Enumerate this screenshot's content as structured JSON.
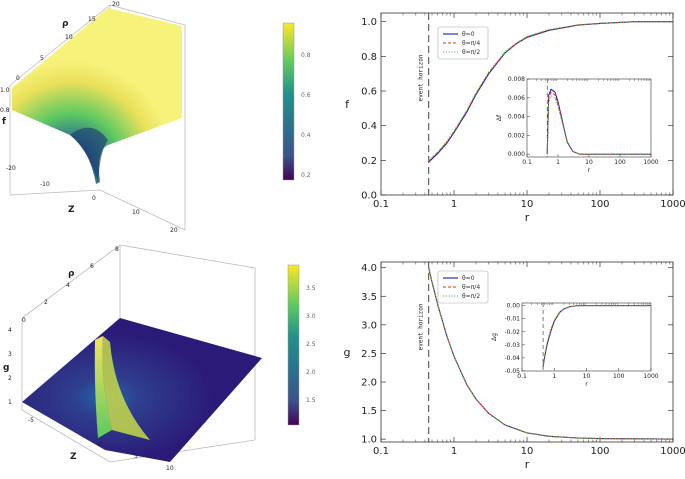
{
  "colorbar_top": {
    "ticks": [
      "0.2",
      "0.4",
      "0.6",
      "0.8"
    ]
  },
  "colorbar_bottom": {
    "ticks": [
      "1.5",
      "2.0",
      "2.5",
      "3.0",
      "3.5"
    ]
  },
  "surface_top": {
    "axis_rho": {
      "label": "ρ",
      "ticks": [
        "20",
        "15",
        "10",
        "5",
        "0"
      ]
    },
    "axis_f": {
      "label": "f",
      "ticks": [
        "1.0",
        "0.8"
      ]
    },
    "axis_z": {
      "label": "Z",
      "ticks": [
        "-20",
        "-10",
        "0",
        "10",
        "20"
      ]
    }
  },
  "surface_bottom": {
    "axis_rho": {
      "label": "ρ",
      "ticks": [
        "8",
        "6",
        "4",
        "2",
        "0"
      ]
    },
    "axis_g": {
      "label": "g",
      "ticks": [
        "4",
        "3",
        "2",
        "1"
      ]
    },
    "axis_z": {
      "label": "Z",
      "ticks": [
        "-5",
        "0",
        "5",
        "10"
      ]
    }
  },
  "chart_data": [
    {
      "type": "line",
      "xlabel": "r",
      "ylabel": "f",
      "xscale": "log",
      "xlim": [
        0.1,
        1000
      ],
      "ylim": [
        0,
        1.05
      ],
      "xticks": [
        "0.1",
        "1",
        "10",
        "100",
        "1000"
      ],
      "yticks": [
        "0.0",
        "0.2",
        "0.4",
        "0.6",
        "0.8",
        "1.0"
      ],
      "horizon_r": 0.45,
      "annotation": "event horizon",
      "x": [
        0.45,
        0.6,
        0.8,
        1,
        1.5,
        2,
        3,
        5,
        7,
        10,
        20,
        50,
        100,
        300,
        1000
      ],
      "series": [
        {
          "name": "θ=0",
          "color": "#1a1aa6",
          "style": "solid",
          "values": [
            0.19,
            0.24,
            0.3,
            0.36,
            0.48,
            0.58,
            0.7,
            0.82,
            0.87,
            0.91,
            0.95,
            0.98,
            0.99,
            1.0,
            1.0
          ]
        },
        {
          "name": "θ=π/4",
          "color": "#e0302a",
          "style": "dashed",
          "values": [
            0.195,
            0.245,
            0.305,
            0.365,
            0.485,
            0.585,
            0.705,
            0.822,
            0.872,
            0.912,
            0.952,
            0.98,
            0.99,
            1.0,
            1.0
          ]
        },
        {
          "name": "θ=π/2",
          "color": "#3ec13e",
          "style": "dotted",
          "values": [
            0.2,
            0.25,
            0.31,
            0.37,
            0.49,
            0.59,
            0.71,
            0.825,
            0.875,
            0.915,
            0.955,
            0.982,
            0.991,
            1.0,
            1.0
          ]
        }
      ],
      "inset": {
        "xlabel": "r",
        "ylabel": "Δf",
        "xlim": [
          0.1,
          1000
        ],
        "ylim": [
          -0.0003,
          0.008
        ],
        "xticks": [
          "0.1",
          "1",
          "10",
          "100",
          "1000"
        ],
        "yticks": [
          "0.000",
          "0.002",
          "0.004",
          "0.006",
          "0.008"
        ],
        "x": [
          0.45,
          0.5,
          0.6,
          0.8,
          1,
          1.5,
          2,
          3,
          5,
          10,
          100,
          1000
        ],
        "series": [
          {
            "name": "θ=0",
            "color": "#1a1aa6",
            "style": "solid",
            "values": [
              0.0,
              0.0063,
              0.0069,
              0.0066,
              0.0056,
              0.003,
              0.0013,
              0.0003,
              0.0,
              0.0,
              0.0,
              0.0
            ]
          },
          {
            "name": "θ=π/4",
            "color": "#e0302a",
            "style": "dashed",
            "values": [
              0.0,
              0.006,
              0.0066,
              0.0063,
              0.0053,
              0.0029,
              0.0012,
              0.0003,
              0.0,
              0.0,
              0.0,
              0.0
            ]
          },
          {
            "name": "θ=π/2",
            "color": "#3ec13e",
            "style": "dotted",
            "values": [
              0.0,
              0.0055,
              0.0062,
              0.006,
              0.0051,
              0.0028,
              0.0012,
              0.0003,
              0.0,
              0.0,
              0.0,
              0.0
            ]
          }
        ]
      }
    },
    {
      "type": "line",
      "xlabel": "r",
      "ylabel": "g",
      "xscale": "log",
      "xlim": [
        0.1,
        1000
      ],
      "ylim": [
        0.95,
        4.1
      ],
      "xticks": [
        "0.1",
        "1",
        "10",
        "100",
        "1000"
      ],
      "yticks": [
        "1.0",
        "1.5",
        "2.0",
        "2.5",
        "3.0",
        "3.5",
        "4.0"
      ],
      "horizon_r": 0.45,
      "annotation": "event horizon",
      "x": [
        0.45,
        0.5,
        0.6,
        0.8,
        1,
        1.5,
        2,
        3,
        5,
        10,
        20,
        50,
        100,
        1000
      ],
      "series": [
        {
          "name": "θ=0",
          "color": "#1a1aa6",
          "style": "solid",
          "values": [
            4.0,
            3.75,
            3.35,
            2.8,
            2.45,
            1.95,
            1.7,
            1.45,
            1.25,
            1.11,
            1.05,
            1.02,
            1.01,
            1.0
          ]
        },
        {
          "name": "θ=π/4",
          "color": "#e0302a",
          "style": "dashed",
          "values": [
            4.0,
            3.75,
            3.35,
            2.8,
            2.45,
            1.95,
            1.7,
            1.45,
            1.25,
            1.11,
            1.05,
            1.02,
            1.01,
            1.0
          ]
        },
        {
          "name": "θ=π/2",
          "color": "#3ec13e",
          "style": "dotted",
          "values": [
            4.0,
            3.75,
            3.35,
            2.8,
            2.45,
            1.95,
            1.7,
            1.45,
            1.25,
            1.11,
            1.05,
            1.02,
            1.01,
            1.0
          ]
        }
      ],
      "inset": {
        "xlabel": "r",
        "ylabel": "Δg",
        "xlim": [
          0.1,
          1000
        ],
        "ylim": [
          -0.05,
          0.002
        ],
        "xticks": [
          "0.1",
          "1",
          "10",
          "100",
          "1000"
        ],
        "yticks": [
          "0.00",
          "-0.01",
          "-0.02",
          "-0.03",
          "-0.04",
          "-0.05"
        ],
        "x": [
          0.45,
          0.5,
          0.6,
          0.8,
          1,
          1.5,
          2,
          3,
          5,
          10,
          100,
          1000
        ],
        "series": [
          {
            "name": "θ=0",
            "color": "#1a1aa6",
            "style": "solid",
            "values": [
              -0.047,
              -0.04,
              -0.03,
              -0.019,
              -0.012,
              -0.005,
              -0.0025,
              -0.0008,
              -0.0001,
              0.0,
              0.0,
              0.0
            ]
          },
          {
            "name": "θ=π/4",
            "color": "#e0302a",
            "style": "dashed",
            "values": [
              -0.047,
              -0.039,
              -0.029,
              -0.018,
              -0.0115,
              -0.0048,
              -0.0024,
              -0.0008,
              -0.0001,
              0.0,
              0.0,
              0.0
            ]
          },
          {
            "name": "θ=π/2",
            "color": "#3ec13e",
            "style": "dotted",
            "values": [
              -0.046,
              -0.038,
              -0.028,
              -0.017,
              -0.011,
              -0.0045,
              -0.0022,
              -0.0007,
              -0.0001,
              0.0,
              0.0,
              0.0
            ]
          }
        ]
      }
    }
  ]
}
